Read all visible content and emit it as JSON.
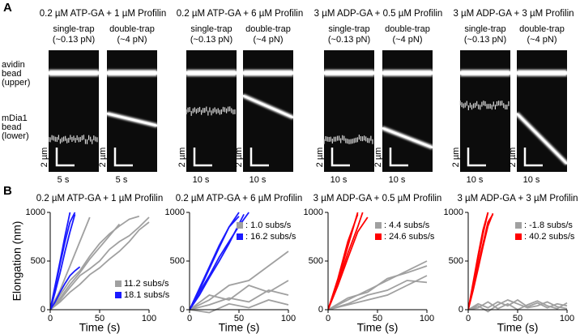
{
  "panel_a": {
    "label": "A",
    "upper_bead_label": [
      "avidin",
      "bead",
      "(upper)"
    ],
    "lower_bead_label": [
      "mDia1",
      "bead",
      "(lower)"
    ],
    "scale_bar": "2 µm",
    "conditions": [
      {
        "title": "0.2 µM ATP-GA + 1 µM Profilin",
        "color": "#1a1aff",
        "single": {
          "label": "single-trap",
          "force": "(~0.13 pN)",
          "time": "5 s"
        },
        "double": {
          "label": "double-trap",
          "force": "(~4 pN)",
          "time": "5 s"
        }
      },
      {
        "title": "0.2 µM ATP-GA + 6 µM Profilin",
        "color": "#1a1aff",
        "single": {
          "label": "single-trap",
          "force": "(~0.13 pN)",
          "time": "10 s"
        },
        "double": {
          "label": "double-trap",
          "force": "(~4 pN)",
          "time": "10 s"
        }
      },
      {
        "title": "3 µM ADP-GA + 0.5 µM Profilin",
        "color": "#ff0000",
        "single": {
          "label": "single-trap",
          "force": "(~0.13 pN)",
          "time": "10 s"
        },
        "double": {
          "label": "double-trap",
          "force": "(~4 pN)",
          "time": "10 s"
        }
      },
      {
        "title": "3 µM ADP-GA + 3 µM Profilin",
        "color": "#ff0000",
        "single": {
          "label": "single-trap",
          "force": "(~0.13 pN)",
          "time": "10 s"
        },
        "double": {
          "label": "double-trap",
          "force": "(~4 pN)",
          "time": "10 s"
        }
      }
    ]
  },
  "panel_b": {
    "label": "B",
    "ylabel": "Elongation (nm)",
    "charts": [
      {
        "type": "line",
        "title": "0.2 µM ATP-GA + 1 µM Profilin",
        "title_color": "#1a1aff",
        "xlabel": "Time (s)",
        "xlim": [
          0,
          100
        ],
        "ylim": [
          0,
          1000
        ],
        "xticks": [
          0,
          50,
          100
        ],
        "yticks": [
          0,
          500,
          1000
        ],
        "legend": "lower right",
        "series": [
          {
            "name": "11.2 subs/s",
            "color": "#a0a0a0",
            "traces": [
              {
                "x": [
                  0,
                  10,
                  20,
                  30,
                  40,
                  50,
                  60,
                  70
                ],
                "values": [
                  0,
                  120,
                  260,
                  380,
                  520,
                  640,
                  760,
                  880
                ]
              },
              {
                "x": [
                  0,
                  10,
                  20,
                  30,
                  40,
                  50,
                  60,
                  70,
                  80,
                  90,
                  100
                ],
                "values": [
                  0,
                  80,
                  180,
                  260,
                  360,
                  430,
                  520,
                  600,
                  700,
                  820,
                  900
                ]
              },
              {
                "x": [
                  0,
                  10,
                  20,
                  30,
                  40
                ],
                "values": [
                  0,
                  200,
                  450,
                  700,
                  950
                ]
              },
              {
                "x": [
                  0,
                  10,
                  20,
                  30,
                  40,
                  50,
                  60,
                  70,
                  80,
                  90,
                  100
                ],
                "values": [
                  0,
                  100,
                  230,
                  350,
                  420,
                  500,
                  620,
                  700,
                  760,
                  850,
                  950
                ]
              },
              {
                "x": [
                  0,
                  10,
                  20,
                  30,
                  40,
                  50,
                  60,
                  70,
                  80,
                  90
                ],
                "values": [
                  0,
                  150,
                  300,
                  400,
                  550,
                  680,
                  780,
                  860,
                  930,
                  960
                ]
              }
            ]
          },
          {
            "name": "18.1 subs/s",
            "color": "#1a1aff",
            "traces": [
              {
                "x": [
                  0,
                  5,
                  10,
                  15,
                  20,
                  25
                ],
                "values": [
                  0,
                  230,
                  470,
                  700,
                  900,
                  1000
                ]
              },
              {
                "x": [
                  0,
                  5,
                  10,
                  15,
                  20
                ],
                "values": [
                  0,
                  250,
                  500,
                  760,
                  1000
                ]
              },
              {
                "x": [
                  0,
                  5,
                  10,
                  15,
                  20,
                  25,
                  30
                ],
                "values": [
                  0,
                  80,
                  180,
                  270,
                  350,
                  400,
                  440
                ]
              },
              {
                "x": [
                  0,
                  5,
                  10,
                  15,
                  20,
                  25
                ],
                "values": [
                  0,
                  180,
                  380,
                  600,
                  800,
                  980
                ]
              }
            ]
          }
        ]
      },
      {
        "type": "line",
        "title": "0.2 µM ATP-GA + 6 µM Profilin",
        "title_color": "#1a1aff",
        "xlabel": "Time (s)",
        "xlim": [
          0,
          100
        ],
        "ylim": [
          0,
          1000
        ],
        "xticks": [
          0,
          50,
          100
        ],
        "yticks": [
          0,
          500,
          1000
        ],
        "legend": "upper right",
        "series": [
          {
            "name": ": 1.0 subs/s",
            "color": "#a0a0a0",
            "traces": [
              {
                "x": [
                  0,
                  20,
                  40,
                  60,
                  80,
                  100
                ],
                "values": [
                  0,
                  50,
                  120,
                  80,
                  200,
                  150
                ]
              },
              {
                "x": [
                  0,
                  20,
                  40,
                  60,
                  80,
                  100
                ],
                "values": [
                  0,
                  150,
                  100,
                  250,
                  180,
                  300
                ]
              },
              {
                "x": [
                  0,
                  20,
                  40,
                  60,
                  80,
                  100
                ],
                "values": [
                  0,
                  100,
                  250,
                  300,
                  450,
                  600
                ]
              },
              {
                "x": [
                  0,
                  20,
                  40,
                  60,
                  80,
                  100
                ],
                "values": [
                  0,
                  -30,
                  60,
                  20,
                  100,
                  50
                ]
              }
            ]
          },
          {
            "name": ": 16.2 subs/s",
            "color": "#1a1aff",
            "traces": [
              {
                "x": [
                  0,
                  10,
                  20,
                  30,
                  40,
                  50
                ],
                "values": [
                  0,
                  200,
                  420,
                  640,
                  850,
                  1000
                ]
              },
              {
                "x": [
                  0,
                  10,
                  20,
                  30,
                  40,
                  50,
                  60
                ],
                "values": [
                  0,
                  180,
                  350,
                  540,
                  700,
                  860,
                  1000
                ]
              },
              {
                "x": [
                  0,
                  10,
                  20,
                  30,
                  40,
                  50,
                  55
                ],
                "values": [
                  0,
                  150,
                  330,
                  500,
                  680,
                  880,
                  980
                ]
              },
              {
                "x": [
                  0,
                  10,
                  20,
                  30,
                  40,
                  50
                ],
                "values": [
                  0,
                  220,
                  440,
                  660,
                  850,
                  960
                ]
              }
            ]
          }
        ]
      },
      {
        "type": "line",
        "title": "3 µM ADP-GA + 0.5 µM Profilin",
        "title_color": "#ff0000",
        "xlabel": "Time (s)",
        "xlim": [
          0,
          100
        ],
        "ylim": [
          0,
          1000
        ],
        "xticks": [
          0,
          50,
          100
        ],
        "yticks": [
          0,
          500,
          1000
        ],
        "legend": "upper right",
        "series": [
          {
            "name": ": 4.4 subs/s",
            "color": "#a0a0a0",
            "traces": [
              {
                "x": [
                  0,
                  20,
                  40,
                  60,
                  80,
                  100
                ],
                "values": [
                  0,
                  100,
                  200,
                  300,
                  400,
                  500
                ]
              },
              {
                "x": [
                  0,
                  20,
                  40,
                  60,
                  80,
                  100
                ],
                "values": [
                  0,
                  60,
                  150,
                  200,
                  300,
                  280
                ]
              },
              {
                "x": [
                  0,
                  20,
                  40,
                  60,
                  80,
                  100
                ],
                "values": [
                  0,
                  120,
                  180,
                  320,
                  380,
                  450
                ]
              },
              {
                "x": [
                  0,
                  20,
                  40,
                  60,
                  80,
                  100
                ],
                "values": [
                  0,
                  50,
                  100,
                  150,
                  250,
                  350
                ]
              }
            ]
          },
          {
            "name": ": 24.6 subs/s",
            "color": "#ff0000",
            "traces": [
              {
                "x": [
                  0,
                  10,
                  20,
                  30
                ],
                "values": [
                  0,
                  300,
                  650,
                  1000
                ]
              },
              {
                "x": [
                  0,
                  10,
                  20,
                  30,
                  35
                ],
                "values": [
                  0,
                  280,
                  580,
                  850,
                  1000
                ]
              },
              {
                "x": [
                  0,
                  10,
                  20,
                  30,
                  40
                ],
                "values": [
                  0,
                  250,
                  530,
                  800,
                  950
                ]
              },
              {
                "x": [
                  0,
                  10,
                  20,
                  30
                ],
                "values": [
                  0,
                  320,
                  700,
                  980
                ]
              }
            ]
          }
        ]
      },
      {
        "type": "line",
        "title": "3 µM ADP-GA + 3 µM Profilin",
        "title_color": "#ff0000",
        "xlabel": "Time (s)",
        "xlim": [
          0,
          100
        ],
        "ylim": [
          0,
          1000
        ],
        "xticks": [
          0,
          50,
          100
        ],
        "yticks": [
          0,
          500,
          1000
        ],
        "legend": "upper right",
        "series": [
          {
            "name": ": -1.8 subs/s",
            "color": "#a0a0a0",
            "traces": [
              {
                "x": [
                  0,
                  10,
                  20,
                  30,
                  40,
                  50,
                  60,
                  70,
                  80,
                  90,
                  100
                ],
                "values": [
                  0,
                  60,
                  20,
                  80,
                  40,
                  100,
                  30,
                  70,
                  20,
                  60,
                  40
                ]
              },
              {
                "x": [
                  0,
                  10,
                  20,
                  30,
                  40,
                  50,
                  60,
                  70,
                  80,
                  90,
                  100
                ],
                "values": [
                  0,
                  20,
                  80,
                  10,
                  60,
                  0,
                  50,
                  90,
                  40,
                  10,
                  70
                ]
              },
              {
                "x": [
                  0,
                  10,
                  20,
                  30,
                  40,
                  50,
                  60,
                  70,
                  80,
                  90,
                  100
                ],
                "values": [
                  0,
                  40,
                  -20,
                  50,
                  100,
                  60,
                  20,
                  40,
                  80,
                  30,
                  10
                ]
              }
            ]
          },
          {
            "name": ": 40.2 subs/s",
            "color": "#ff0000",
            "traces": [
              {
                "x": [
                  0,
                  5,
                  10,
                  15,
                  20
                ],
                "values": [
                  0,
                  250,
                  520,
                  780,
                  1000
                ]
              },
              {
                "x": [
                  0,
                  5,
                  10,
                  15,
                  20,
                  25
                ],
                "values": [
                  0,
                  220,
                  450,
                  680,
                  900,
                  980
                ]
              },
              {
                "x": [
                  0,
                  5,
                  10,
                  15,
                  20
                ],
                "values": [
                  0,
                  280,
                  560,
                  820,
                  1000
                ]
              },
              {
                "x": [
                  0,
                  5,
                  10,
                  15,
                  20,
                  25
                ],
                "values": [
                  0,
                  200,
                  420,
                  650,
                  860,
                  990
                ]
              }
            ]
          }
        ]
      }
    ]
  }
}
